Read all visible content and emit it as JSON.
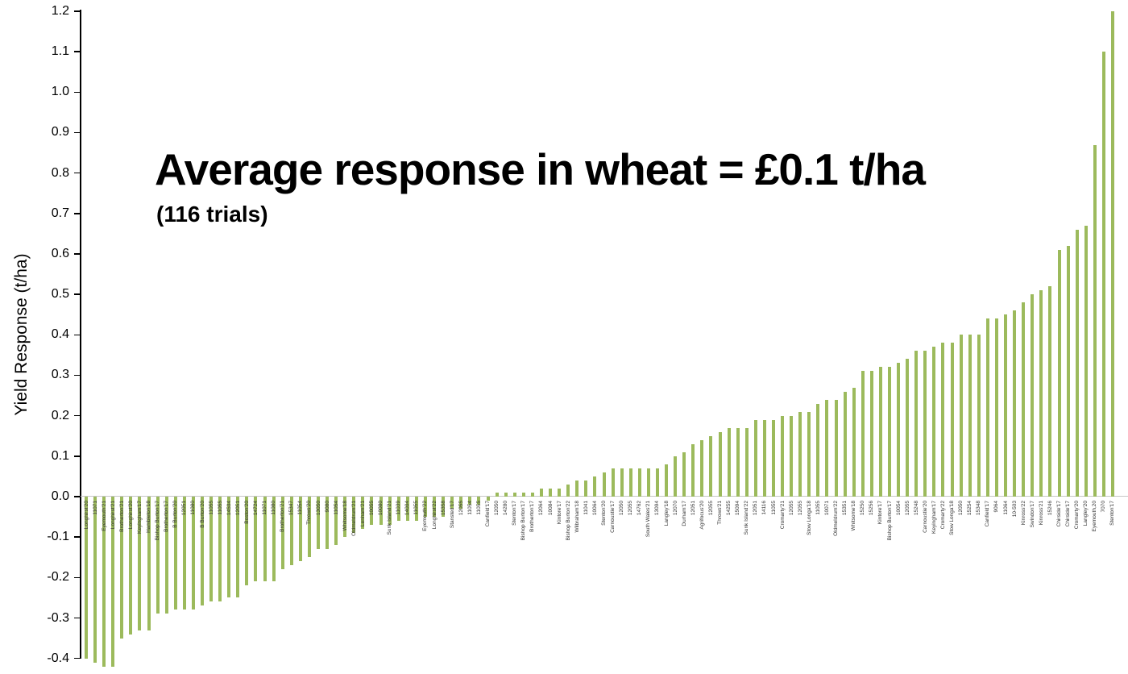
{
  "chart_data": {
    "type": "bar",
    "title": "Average response in wheat = £0.1 t/ha",
    "subtitle": "(116 trials)",
    "ylabel": "Yield Response (t/ha)",
    "xlabel": "",
    "ylim": [
      -0.4,
      1.2
    ],
    "ytick_step": 0.1,
    "yticks": [
      1.2,
      1.1,
      1.0,
      0.9,
      0.8,
      0.7,
      0.6,
      0.5,
      0.4,
      0.3,
      0.2,
      0.1,
      0.0,
      -0.1,
      -0.2,
      -0.3,
      -0.4
    ],
    "grid": false,
    "legend": "none",
    "bar_color": "#9cba5c",
    "axis_color": "#000000",
    "categories": [
      "Longhirst'20",
      "11071",
      "Eyemouth'21",
      "Longhirst'21",
      "Brotherton'21",
      "Longhirst'20",
      "Keyingham'17",
      "Hambleton'18",
      "Bishop Burton'17",
      "Brotherton'17",
      "B Burton'20",
      "12051",
      "11080",
      "B Burton'20",
      "11055",
      "11055",
      "14504",
      "12051",
      "Boston'20",
      "14724",
      "11071",
      "11080",
      "Brotherton'21",
      "15347",
      "11054",
      "Throws'20",
      "13050",
      "9080",
      "11054",
      "Whitsome'18",
      "Oldmeldrum'21",
      "Lenham'21",
      "10055",
      "10080",
      "Sunk Island'21",
      "11039",
      "14004",
      "11055",
      "Eyemouth'22",
      "Longhirst'22",
      "15358",
      "Stansted'17",
      "12055",
      "11054",
      "11055",
      "Canfield'17",
      "12050",
      "14280",
      "Stenton'17",
      "Bishop Burton'17",
      "Brotherton'17",
      "12064",
      "10084",
      "Kintore'17",
      "Bishop Burton'22",
      "Wilbraham'18",
      "11041",
      "10064",
      "Stenton'20",
      "Carnoustie'17",
      "12050",
      "12055",
      "14762",
      "South Wales'21",
      "13094",
      "Langley'18",
      "12070",
      "Durham'17",
      "12051",
      "Agrifocus'20",
      "12055",
      "Throws'21",
      "14255",
      "15094",
      "Sunk Island'22",
      "12051",
      "14116",
      "11055",
      "Cromarty'21",
      "12055",
      "12055",
      "Stow Longa'18",
      "11055",
      "10071",
      "Oldmeldrum'22",
      "15351",
      "Whitsome'18",
      "15250",
      "15256",
      "Kintore'17",
      "Bishop Burton'17",
      "10054",
      "12055",
      "15248",
      "Carnoustie'20",
      "Keyingham'17",
      "Cromarty'22",
      "Stow Longa'18",
      "12050",
      "15254",
      "15348",
      "Canfield'17",
      "9064",
      "11064",
      "10-503",
      "Kinross'22",
      "Swindon'17",
      "Kinross'21",
      "15246",
      "Chirside'17",
      "Chirside'17",
      "Cromarty'20",
      "Langley'20",
      "Eyemouth,20",
      "7070",
      "Stenton'17"
    ],
    "values": [
      -0.4,
      -0.41,
      -0.42,
      -0.42,
      -0.35,
      -0.34,
      -0.33,
      -0.33,
      -0.29,
      -0.29,
      -0.28,
      -0.28,
      -0.28,
      -0.27,
      -0.26,
      -0.26,
      -0.25,
      -0.25,
      -0.22,
      -0.21,
      -0.21,
      -0.21,
      -0.18,
      -0.17,
      -0.16,
      -0.15,
      -0.13,
      -0.13,
      -0.12,
      -0.1,
      -0.09,
      -0.08,
      -0.07,
      -0.07,
      -0.07,
      -0.06,
      -0.06,
      -0.06,
      -0.05,
      -0.05,
      -0.05,
      -0.03,
      -0.03,
      -0.02,
      -0.02,
      -0.01,
      0.01,
      0.01,
      0.01,
      0.01,
      0.01,
      0.02,
      0.02,
      0.02,
      0.03,
      0.04,
      0.04,
      0.05,
      0.06,
      0.07,
      0.07,
      0.07,
      0.07,
      0.07,
      0.07,
      0.08,
      0.1,
      0.11,
      0.13,
      0.14,
      0.15,
      0.16,
      0.17,
      0.17,
      0.17,
      0.19,
      0.19,
      0.19,
      0.2,
      0.2,
      0.21,
      0.21,
      0.23,
      0.24,
      0.24,
      0.26,
      0.27,
      0.31,
      0.31,
      0.32,
      0.32,
      0.33,
      0.34,
      0.36,
      0.36,
      0.37,
      0.38,
      0.38,
      0.4,
      0.4,
      0.4,
      0.44,
      0.44,
      0.45,
      0.46,
      0.48,
      0.5,
      0.51,
      0.52,
      0.61,
      0.62,
      0.66,
      0.67,
      0.87,
      1.1,
      1.2
    ]
  }
}
